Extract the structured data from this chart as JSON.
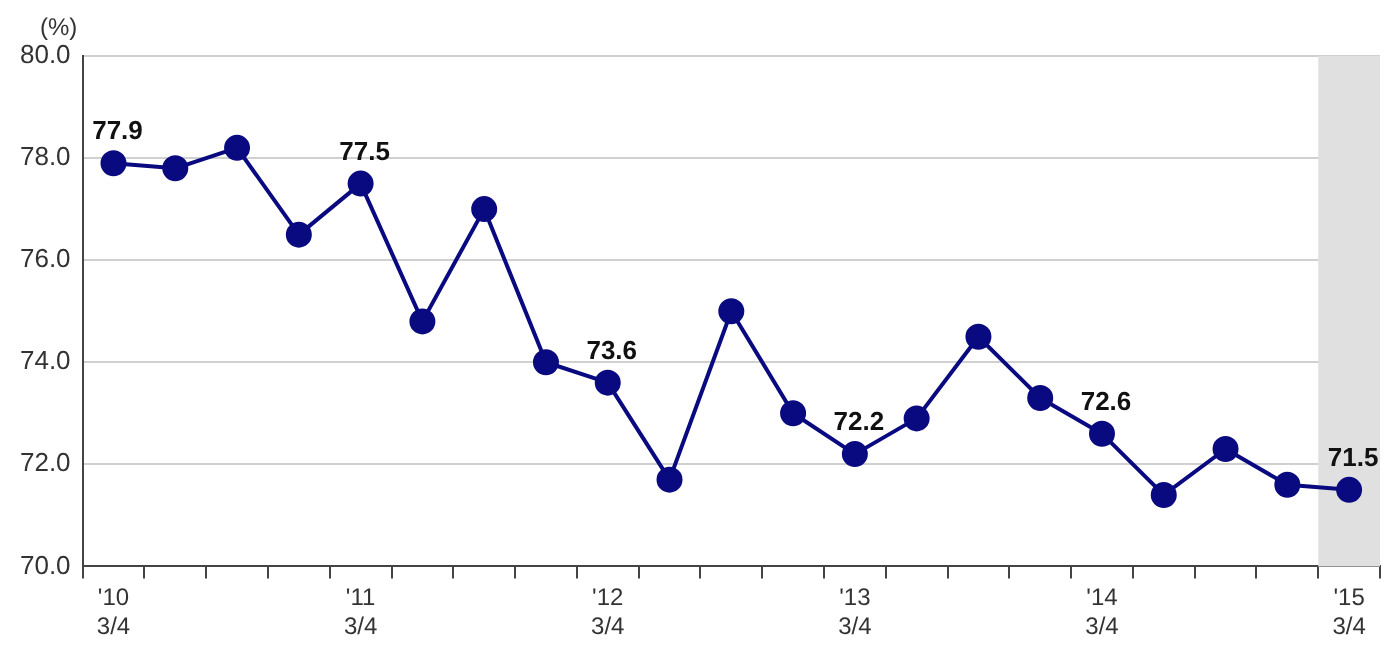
{
  "chart_data": {
    "type": "line",
    "ylabel": "(%)",
    "categories": [
      "'10 3/4",
      null,
      null,
      null,
      "'11 3/4",
      null,
      null,
      null,
      "'12 3/4",
      null,
      null,
      null,
      "'13 3/4",
      null,
      null,
      null,
      "'14 3/4",
      null,
      null,
      null,
      "'15 3/4"
    ],
    "series": [
      {
        "color": "#0a0a80",
        "values": [
          77.9,
          77.8,
          78.2,
          76.5,
          77.5,
          74.8,
          77.0,
          74.0,
          73.6,
          71.7,
          75.0,
          73.0,
          72.2,
          72.9,
          74.5,
          73.3,
          72.6,
          71.4,
          72.3,
          71.6,
          71.5
        ],
        "value_labels": [
          "77.9",
          null,
          null,
          null,
          "77.5",
          null,
          null,
          null,
          "73.6",
          null,
          null,
          null,
          "72.2",
          null,
          null,
          null,
          "72.6",
          null,
          null,
          null,
          "71.5"
        ]
      }
    ],
    "ylim": [
      70,
      80
    ],
    "yticks": [
      {
        "value": 70,
        "label": "70.0"
      },
      {
        "value": 72,
        "label": "72.0"
      },
      {
        "value": 74,
        "label": "74.0"
      },
      {
        "value": 76,
        "label": "76.0"
      },
      {
        "value": 78,
        "label": "78.0"
      },
      {
        "value": 80,
        "label": "80.0"
      }
    ],
    "bands": [
      {
        "axis": "x",
        "from": "'15 3/4",
        "to": "'15 3/4",
        "color": "#e0e0e0"
      }
    ],
    "grid": "y",
    "marker": "circle",
    "line_style": "solid"
  }
}
